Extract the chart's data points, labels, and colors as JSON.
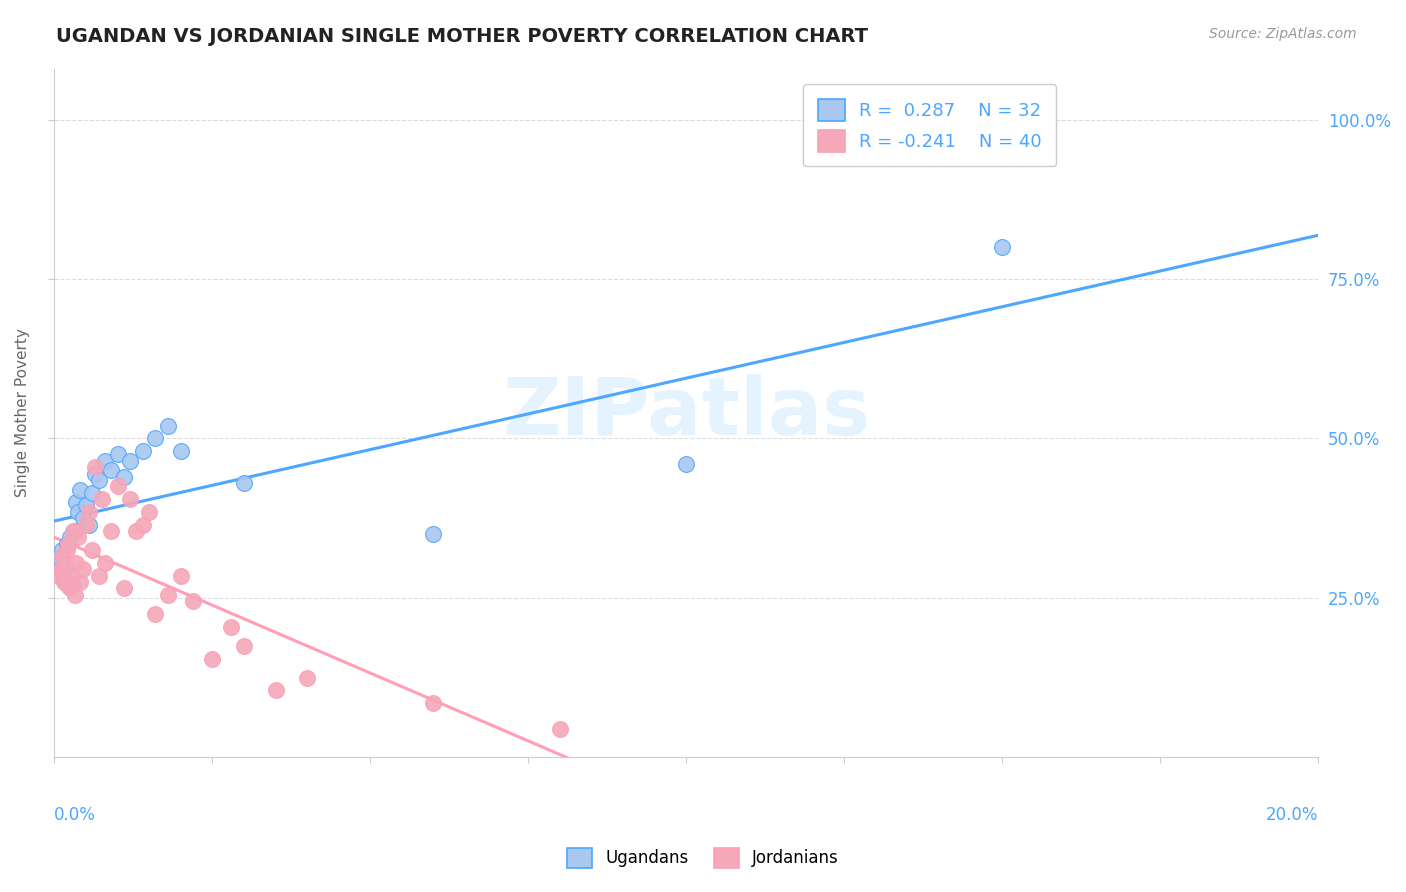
{
  "title": "UGANDAN VS JORDANIAN SINGLE MOTHER POVERTY CORRELATION CHART",
  "source": "Source: ZipAtlas.com",
  "ylabel": "Single Mother Poverty",
  "ytick_labels": [
    "25.0%",
    "50.0%",
    "75.0%",
    "100.0%"
  ],
  "ytick_values": [
    0.25,
    0.5,
    0.75,
    1.0
  ],
  "xmin": 0.0,
  "xmax": 0.2,
  "ymin": 0.0,
  "ymax": 1.08,
  "ugandan_color": "#a8c8f0",
  "jordanian_color": "#f4a8b8",
  "ugandan_line_color": "#4da6ff",
  "jordanian_line_color": "#ff9eb5",
  "R_ugandan": 0.287,
  "N_ugandan": 32,
  "R_jordanian": -0.241,
  "N_jordanian": 40,
  "ugandan_x": [
    0.0008,
    0.001,
    0.0012,
    0.0015,
    0.0018,
    0.002,
    0.0022,
    0.0025,
    0.003,
    0.0032,
    0.0035,
    0.0038,
    0.004,
    0.0045,
    0.005,
    0.0055,
    0.006,
    0.0065,
    0.007,
    0.008,
    0.009,
    0.01,
    0.011,
    0.012,
    0.014,
    0.016,
    0.018,
    0.02,
    0.03,
    0.06,
    0.1,
    0.15
  ],
  "ugandan_y": [
    0.295,
    0.31,
    0.325,
    0.28,
    0.295,
    0.335,
    0.27,
    0.345,
    0.27,
    0.355,
    0.4,
    0.385,
    0.42,
    0.375,
    0.395,
    0.365,
    0.415,
    0.445,
    0.435,
    0.465,
    0.45,
    0.475,
    0.44,
    0.465,
    0.48,
    0.5,
    0.52,
    0.48,
    0.43,
    0.35,
    0.46,
    0.8
  ],
  "jordanian_x": [
    0.0008,
    0.001,
    0.0012,
    0.0015,
    0.0018,
    0.002,
    0.0022,
    0.0025,
    0.0028,
    0.003,
    0.0032,
    0.0035,
    0.0038,
    0.004,
    0.0045,
    0.005,
    0.0055,
    0.006,
    0.0065,
    0.007,
    0.0075,
    0.008,
    0.009,
    0.01,
    0.011,
    0.012,
    0.013,
    0.014,
    0.015,
    0.016,
    0.018,
    0.02,
    0.022,
    0.025,
    0.028,
    0.03,
    0.035,
    0.04,
    0.06,
    0.08
  ],
  "jordanian_y": [
    0.285,
    0.295,
    0.315,
    0.275,
    0.305,
    0.325,
    0.335,
    0.265,
    0.285,
    0.355,
    0.255,
    0.305,
    0.345,
    0.275,
    0.295,
    0.365,
    0.385,
    0.325,
    0.455,
    0.285,
    0.405,
    0.305,
    0.355,
    0.425,
    0.265,
    0.405,
    0.355,
    0.365,
    0.385,
    0.225,
    0.255,
    0.285,
    0.245,
    0.155,
    0.205,
    0.175,
    0.105,
    0.125,
    0.085,
    0.045
  ],
  "xtick_positions": [
    0.0,
    0.025,
    0.05,
    0.075,
    0.1,
    0.125,
    0.15,
    0.175,
    0.2
  ],
  "grid_color": "#dddddd",
  "spine_color": "#cccccc",
  "watermark_color": "#daeeff",
  "watermark_alpha": 0.7
}
